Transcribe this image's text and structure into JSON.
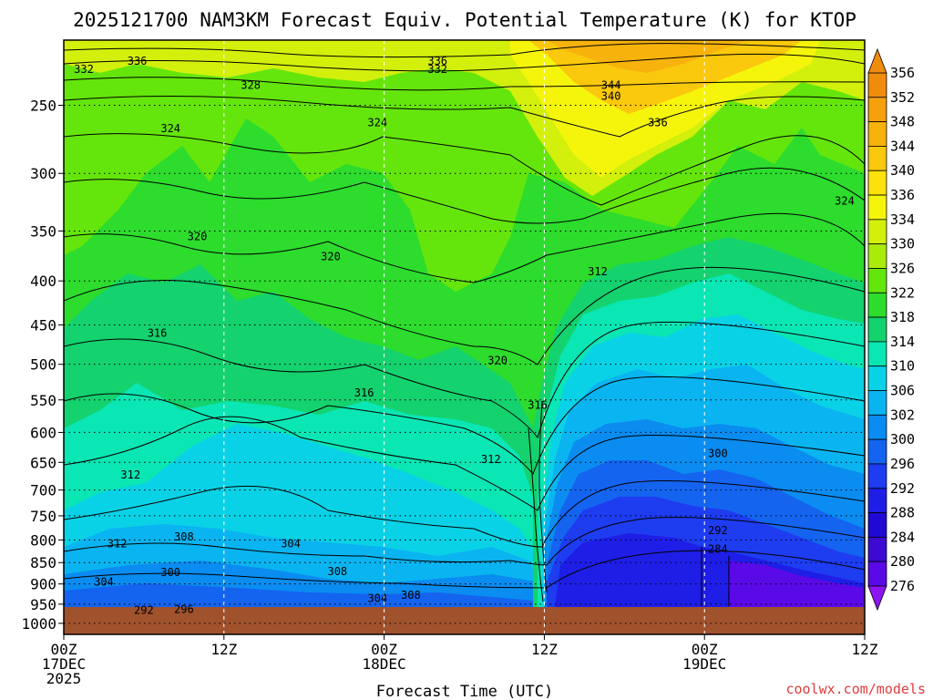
{
  "chart_data": {
    "type": "heatmap",
    "title": "2025121700 NAM3KM Forecast Equiv. Potential Temperature (K) for KTOP",
    "xlabel": "Forecast Time (UTC)",
    "ylabel": "",
    "x_ticks": [
      {
        "hour": 0,
        "lines": [
          "00Z",
          "17DEC",
          "2025"
        ]
      },
      {
        "hour": 12,
        "lines": [
          "12Z"
        ]
      },
      {
        "hour": 24,
        "lines": [
          "00Z",
          "18DEC"
        ]
      },
      {
        "hour": 36,
        "lines": [
          "12Z"
        ]
      },
      {
        "hour": 48,
        "lines": [
          "00Z",
          "19DEC"
        ]
      },
      {
        "hour": 60,
        "lines": [
          "12Z"
        ]
      }
    ],
    "xlim_hours": [
      0,
      60
    ],
    "y_ticks_hpa": [
      250,
      300,
      350,
      400,
      450,
      500,
      550,
      600,
      650,
      700,
      750,
      800,
      850,
      900,
      950,
      1000
    ],
    "ylim_hpa": [
      210,
      1030
    ],
    "y_scale": "log",
    "grid": true,
    "surface_pressure_hpa": 970,
    "colorbar": {
      "levels": [
        356,
        352,
        348,
        344,
        340,
        336,
        334,
        330,
        326,
        322,
        318,
        314,
        310,
        306,
        302,
        300,
        296,
        292,
        288,
        284,
        280,
        276
      ],
      "colors": [
        "#f08c0c",
        "#f5a00c",
        "#f7b20c",
        "#fac80c",
        "#fce10c",
        "#f5f50c",
        "#d2f00c",
        "#aaeb0c",
        "#64e60c",
        "#2ddc2d",
        "#14d26e",
        "#0ae6b4",
        "#0ad2e6",
        "#0ab4f0",
        "#0a8cf0",
        "#1464f0",
        "#1e3cf0",
        "#1e1ee6",
        "#1e0ad2",
        "#3c0ad2",
        "#5a0ae6",
        "#8c14f0"
      ],
      "extend": "both"
    },
    "contour_labels": [
      {
        "t": 5.5,
        "p": 222,
        "v": "336"
      },
      {
        "t": 28,
        "p": 222,
        "v": "336"
      },
      {
        "t": 28,
        "p": 227,
        "v": "332"
      },
      {
        "t": 1.5,
        "p": 227,
        "v": "332"
      },
      {
        "t": 14,
        "p": 237,
        "v": "328"
      },
      {
        "t": 41,
        "p": 237,
        "v": "344"
      },
      {
        "t": 41,
        "p": 244,
        "v": "340"
      },
      {
        "t": 44.5,
        "p": 262,
        "v": "336"
      },
      {
        "t": 23.5,
        "p": 262,
        "v": "324"
      },
      {
        "t": 8,
        "p": 266,
        "v": "324"
      },
      {
        "t": 58.5,
        "p": 323,
        "v": "324"
      },
      {
        "t": 10,
        "p": 355,
        "v": "320"
      },
      {
        "t": 20,
        "p": 375,
        "v": "320"
      },
      {
        "t": 40,
        "p": 390,
        "v": "312"
      },
      {
        "t": 7,
        "p": 460,
        "v": "316"
      },
      {
        "t": 32.5,
        "p": 495,
        "v": "320"
      },
      {
        "t": 22.5,
        "p": 540,
        "v": "316"
      },
      {
        "t": 35.5,
        "p": 558,
        "v": "316"
      },
      {
        "t": 49,
        "p": 635,
        "v": "300"
      },
      {
        "t": 32,
        "p": 645,
        "v": "312"
      },
      {
        "t": 5,
        "p": 672,
        "v": "312"
      },
      {
        "t": 49,
        "p": 780,
        "v": "292"
      },
      {
        "t": 9,
        "p": 793,
        "v": "308"
      },
      {
        "t": 4,
        "p": 808,
        "v": "312"
      },
      {
        "t": 17,
        "p": 808,
        "v": "304"
      },
      {
        "t": 49,
        "p": 820,
        "v": "284"
      },
      {
        "t": 20.5,
        "p": 870,
        "v": "308"
      },
      {
        "t": 8,
        "p": 873,
        "v": "300"
      },
      {
        "t": 3,
        "p": 895,
        "v": "304"
      },
      {
        "t": 26,
        "p": 928,
        "v": "308"
      },
      {
        "t": 23.5,
        "p": 935,
        "v": "304"
      },
      {
        "t": 6,
        "p": 965,
        "v": "292"
      },
      {
        "t": 9,
        "p": 963,
        "v": "296"
      }
    ]
  },
  "credit": "coolwx.com/models"
}
